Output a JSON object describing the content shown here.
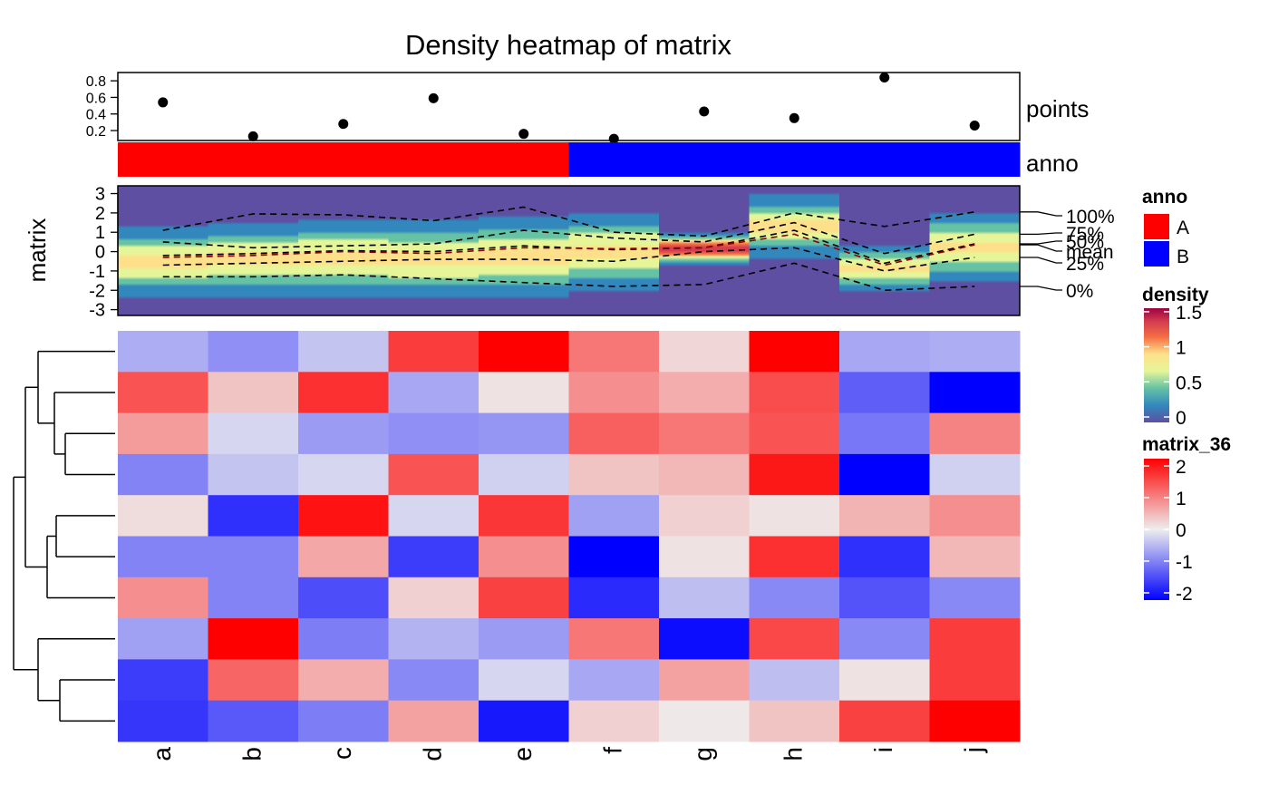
{
  "title": "Density heatmap of matrix",
  "columns": [
    "a",
    "b",
    "c",
    "d",
    "e",
    "f",
    "g",
    "h",
    "i",
    "j"
  ],
  "chart_data": [
    {
      "type": "scatter",
      "name": "points",
      "label": "points",
      "categories": [
        "a",
        "b",
        "c",
        "d",
        "e",
        "f",
        "g",
        "h",
        "i",
        "j"
      ],
      "values": [
        0.54,
        0.13,
        0.28,
        0.59,
        0.16,
        0.1,
        0.43,
        0.35,
        0.84,
        0.26
      ],
      "ylim": [
        0.08,
        0.9
      ],
      "yticks": [
        "0.2",
        "0.4",
        "0.6",
        "0.8"
      ],
      "ytick_values": [
        0.2,
        0.4,
        0.6,
        0.8
      ]
    },
    {
      "type": "categorical-annotation",
      "name": "anno",
      "label": "anno",
      "values": [
        "A",
        "A",
        "A",
        "A",
        "A",
        "B",
        "B",
        "B",
        "B",
        "B"
      ],
      "colors": {
        "A": "#ff0000",
        "B": "#0000ff"
      }
    },
    {
      "type": "heatmap",
      "name": "density",
      "ylabel": "matrix",
      "ylim": [
        -3.3,
        3.4
      ],
      "yticks": [
        "3",
        "2",
        "1",
        "0",
        "-1",
        "-2",
        "-3"
      ],
      "ytick_values": [
        3,
        2,
        1,
        0,
        -1,
        -2,
        -3
      ],
      "quantile_labels": [
        "100%",
        "75%",
        "50%",
        "mean",
        "25%",
        "0%"
      ],
      "quantiles": {
        "max": [
          1.1,
          1.95,
          1.9,
          1.6,
          2.3,
          1.0,
          0.8,
          2.0,
          1.3,
          2.05
        ],
        "q75": [
          0.5,
          0.2,
          0.3,
          0.4,
          1.1,
          0.7,
          0.5,
          1.5,
          -0.1,
          0.9
        ],
        "median": [
          -0.2,
          -0.1,
          0.05,
          0.0,
          0.3,
          0.1,
          0.2,
          1.1,
          -0.6,
          0.4
        ],
        "mean": [
          -0.3,
          -0.2,
          0.0,
          -0.1,
          0.2,
          0.15,
          0.2,
          0.9,
          -0.7,
          0.35
        ],
        "q25": [
          -0.7,
          -0.6,
          -0.5,
          -0.4,
          -0.4,
          -0.5,
          0.0,
          0.2,
          -1.0,
          -0.3
        ],
        "min": [
          -1.3,
          -1.3,
          -1.2,
          -1.4,
          -1.6,
          -1.8,
          -1.7,
          -0.6,
          -2.0,
          -1.8
        ]
      },
      "peaks": [
        -0.5,
        -0.4,
        -0.3,
        -0.4,
        -0.3,
        0.0,
        0.15,
        1.3,
        -0.9,
        0.2
      ],
      "spreads": [
        0.9,
        0.95,
        1.0,
        1.0,
        1.05,
        1.0,
        0.4,
        0.8,
        0.6,
        0.9
      ],
      "legend": {
        "title": "density",
        "ticks": [
          "1.5",
          "1",
          "0.5",
          "0"
        ],
        "tick_values": [
          1.5,
          1,
          0.5,
          0
        ]
      }
    },
    {
      "type": "heatmap",
      "name": "matrix_36",
      "rows": 10,
      "values": [
        [
          -0.55,
          -0.8,
          -0.35,
          1.5,
          2.05,
          1.0,
          0.2,
          2.0,
          -0.6,
          -0.55
        ],
        [
          1.3,
          0.35,
          1.6,
          -0.6,
          0.1,
          0.8,
          0.55,
          1.35,
          -1.2,
          -2.0
        ],
        [
          0.7,
          -0.2,
          -0.7,
          -0.8,
          -0.75,
          1.2,
          1.0,
          1.3,
          -1.0,
          0.9
        ],
        [
          -0.9,
          -0.35,
          -0.2,
          1.3,
          -0.25,
          0.35,
          0.45,
          1.8,
          -2.3,
          -0.25
        ],
        [
          0.15,
          -1.6,
          1.85,
          -0.2,
          1.55,
          -0.65,
          0.25,
          0.1,
          0.5,
          0.8
        ],
        [
          -0.9,
          -0.9,
          0.6,
          -1.5,
          0.8,
          -2.2,
          0.1,
          1.6,
          -1.6,
          0.45
        ],
        [
          0.8,
          -0.9,
          -1.35,
          0.25,
          1.45,
          -1.65,
          -0.4,
          -0.85,
          -1.3,
          -0.85
        ],
        [
          -0.65,
          2.1,
          -0.95,
          -0.5,
          -0.7,
          1.0,
          -1.9,
          1.4,
          -0.85,
          1.5
        ],
        [
          -1.5,
          1.15,
          0.55,
          -0.85,
          -0.2,
          -0.6,
          0.65,
          -0.4,
          0.1,
          1.5
        ],
        [
          -1.55,
          -1.25,
          -0.95,
          0.65,
          -1.8,
          0.25,
          0.05,
          0.35,
          1.45,
          2.05
        ]
      ],
      "legend": {
        "title": "matrix_36",
        "ticks": [
          "2",
          "1",
          "0",
          "-1",
          "-2"
        ],
        "tick_values": [
          2,
          1,
          0,
          -1,
          -2
        ]
      }
    }
  ],
  "legends": {
    "anno": {
      "title": "anno",
      "items": [
        {
          "label": "A",
          "color": "#ff0000"
        },
        {
          "label": "B",
          "color": "#0000ff"
        }
      ]
    }
  }
}
